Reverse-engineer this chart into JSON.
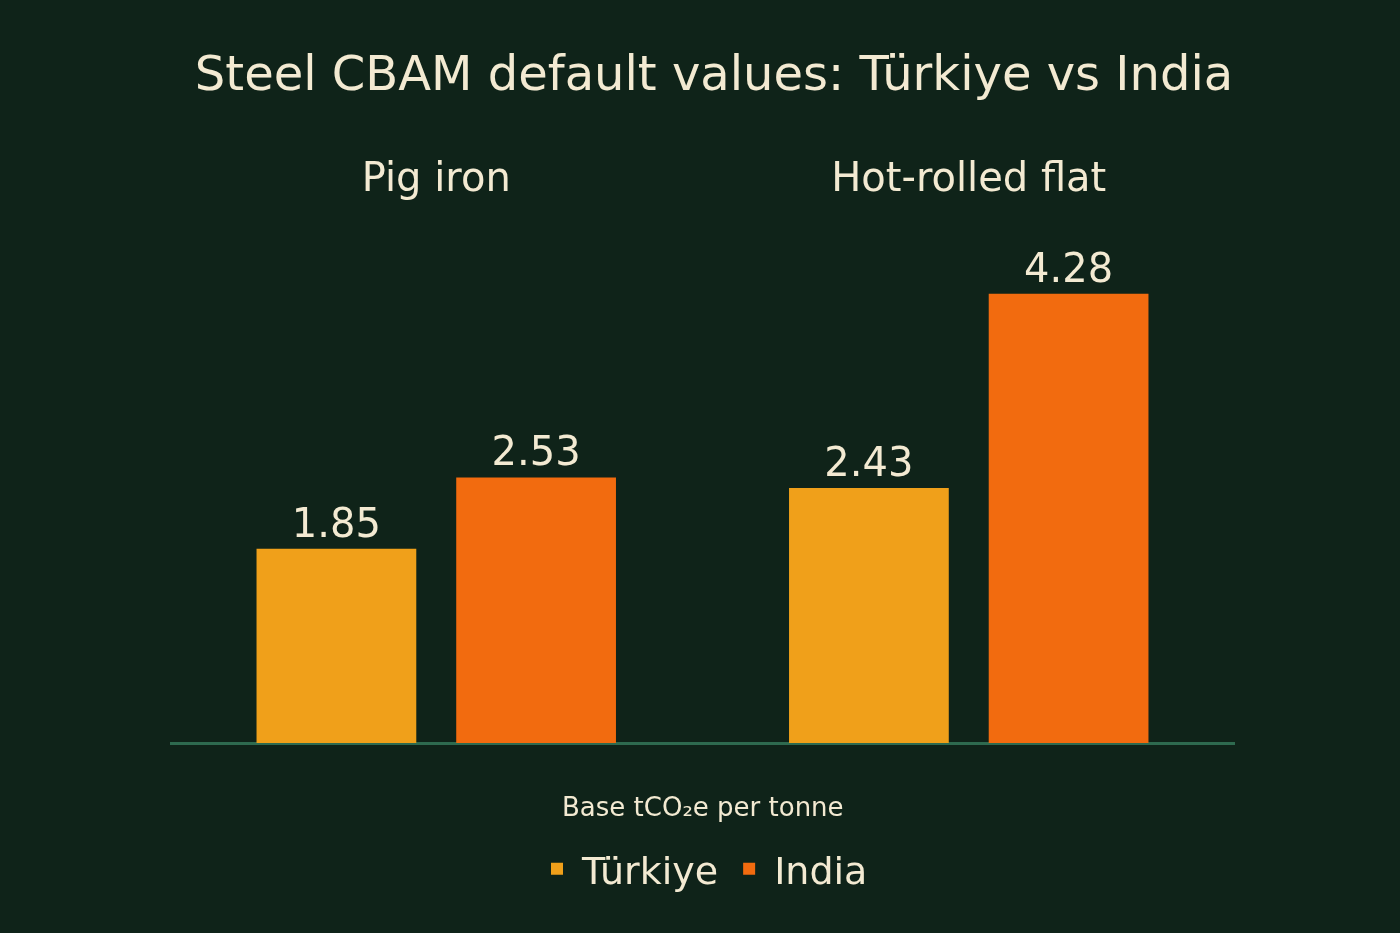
{
  "chart_data": {
    "type": "bar",
    "title": "Steel CBAM default values: Türkiye vs India",
    "xlabel": "Base tCO₂e per tonne",
    "categories": [
      "Pig iron",
      "Hot-rolled flat"
    ],
    "series": [
      {
        "name": "Türkiye",
        "color": "#f0a01a",
        "values": [
          1.85,
          2.43
        ]
      },
      {
        "name": "India",
        "color": "#f26b0f",
        "values": [
          2.53,
          4.28
        ]
      }
    ],
    "data_labels": true,
    "legend": "bottom"
  }
}
